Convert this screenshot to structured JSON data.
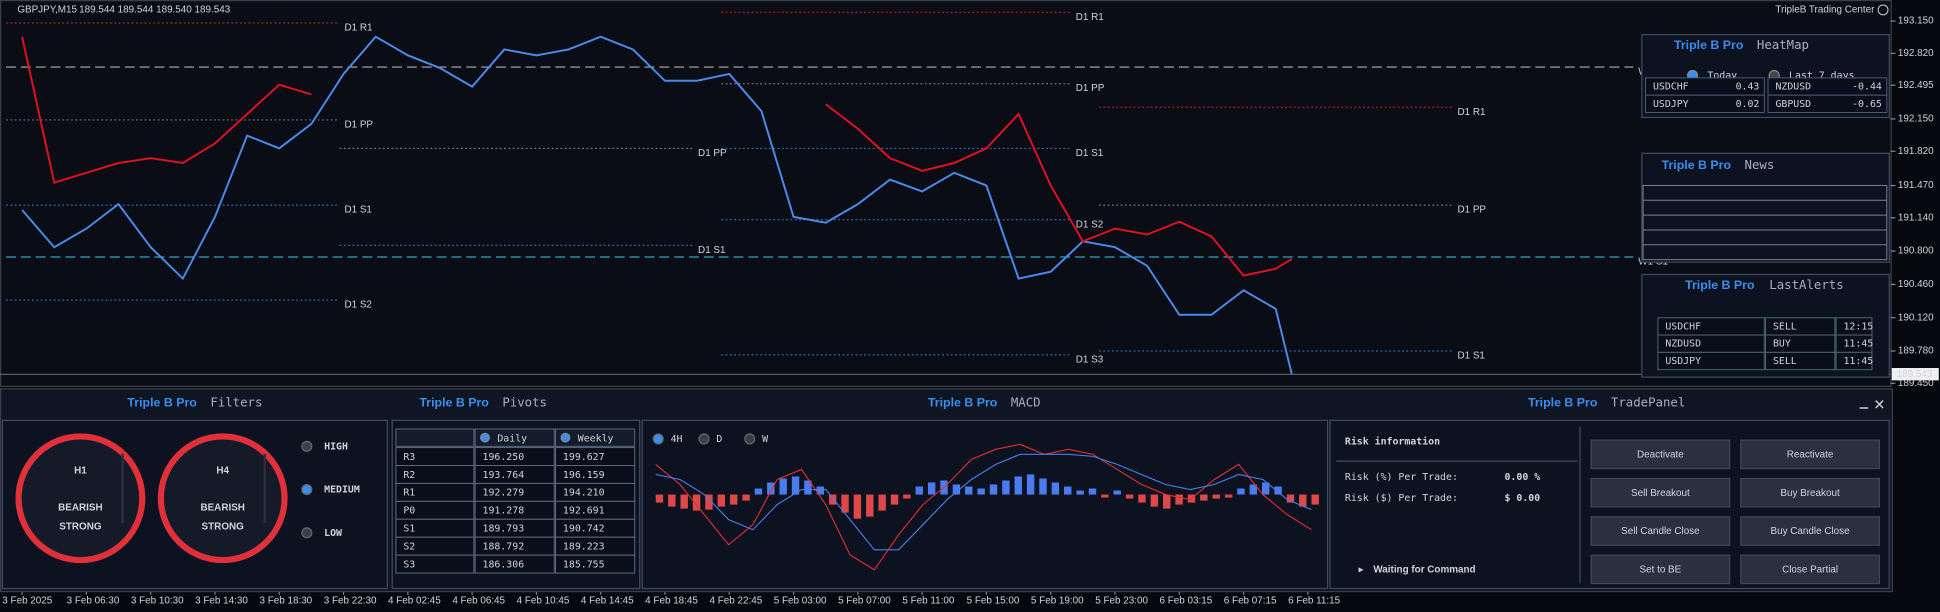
{
  "header": {
    "symbol": "GBPJPY,M15",
    "quote": "189.544 189.544 189.540 189.543",
    "brand": "TripleB Trading Center"
  },
  "chart_data": {
    "type": "line",
    "x": [
      0,
      8,
      16,
      24,
      32,
      40,
      48,
      56,
      64,
      72,
      80,
      88,
      96,
      104,
      112,
      120,
      128,
      136,
      144,
      152,
      160,
      168,
      176,
      184,
      192,
      200,
      208,
      216,
      224,
      232,
      240,
      248,
      256,
      264,
      272,
      280,
      288,
      296,
      304,
      312,
      316
    ],
    "series": [
      {
        "color": "#4a8ae8",
        "values": [
          191.22,
          190.84,
          191.03,
          191.28,
          190.84,
          190.52,
          191.15,
          191.98,
          191.85,
          192.1,
          192.61,
          192.99,
          192.8,
          192.67,
          192.48,
          192.86,
          192.8,
          192.86,
          192.99,
          192.86,
          192.54,
          192.54,
          192.61,
          192.23,
          191.15,
          191.09,
          191.28,
          191.53,
          191.41,
          191.6,
          191.47,
          190.52,
          190.59,
          190.9,
          190.84,
          190.65,
          190.15,
          190.15,
          190.4,
          190.21,
          189.543
        ]
      },
      {
        "color": "#e01020",
        "values": [
          192.99,
          191.5,
          191.6,
          191.7,
          191.75,
          191.7,
          191.9,
          192.2,
          192.5,
          192.4,
          null,
          null,
          null,
          null,
          null,
          null,
          null,
          null,
          null,
          null,
          null,
          null,
          null,
          null,
          null,
          192.3,
          192.05,
          191.75,
          191.62,
          191.7,
          191.85,
          192.2,
          191.47,
          190.9,
          191.03,
          190.97,
          191.1,
          190.95,
          190.55,
          190.62,
          190.72
        ]
      }
    ],
    "xlim": [
      -5.5,
      465
    ],
    "xticks": [
      {
        "value": 0,
        "label": "3 Feb 2025"
      },
      {
        "value": 16,
        "label": "3 Feb 06:30"
      },
      {
        "value": 32,
        "label": "3 Feb 10:30"
      },
      {
        "value": 48,
        "label": "3 Feb 14:30"
      },
      {
        "value": 64,
        "label": "3 Feb 18:30"
      },
      {
        "value": 80,
        "label": "3 Feb 22:30"
      },
      {
        "value": 96,
        "label": "4 Feb 02:45"
      },
      {
        "value": 112,
        "label": "4 Feb 06:45"
      },
      {
        "value": 128,
        "label": "4 Feb 10:45"
      },
      {
        "value": 144,
        "label": "4 Feb 14:45"
      },
      {
        "value": 160,
        "label": "4 Feb 18:45"
      },
      {
        "value": 176,
        "label": "4 Feb 22:45"
      },
      {
        "value": 192,
        "label": "5 Feb 03:00"
      },
      {
        "value": 208,
        "label": "5 Feb 07:00"
      },
      {
        "value": 224,
        "label": "5 Feb 11:00"
      },
      {
        "value": 240,
        "label": "5 Feb 15:00"
      },
      {
        "value": 256,
        "label": "5 Feb 19:00"
      },
      {
        "value": 272,
        "label": "5 Feb 23:00"
      },
      {
        "value": 288,
        "label": "6 Feb 03:15"
      },
      {
        "value": 304,
        "label": "6 Feb 07:15"
      },
      {
        "value": 320,
        "label": "6 Feb 11:15"
      }
    ],
    "ylim": [
      189.425,
      193.365
    ],
    "yticks": [
      {
        "value": 193.15,
        "label": "193.150"
      },
      {
        "value": 192.82,
        "label": "192.820"
      },
      {
        "value": 192.495,
        "label": "192.495"
      },
      {
        "value": 192.15,
        "label": "192.150"
      },
      {
        "value": 191.82,
        "label": "191.820"
      },
      {
        "value": 191.47,
        "label": "191.470"
      },
      {
        "value": 191.14,
        "label": "191.140"
      },
      {
        "value": 190.8,
        "label": "190.800"
      },
      {
        "value": 190.46,
        "label": "190.460"
      },
      {
        "value": 190.12,
        "label": "190.120"
      },
      {
        "value": 189.78,
        "label": "189.780"
      },
      {
        "value": 189.45,
        "label": "189.450"
      }
    ],
    "current_price": {
      "value": 189.543,
      "label": "189.543"
    },
    "levels": [
      {
        "label": "D1 R1",
        "value": 193.13,
        "from": -4,
        "to": 79,
        "color": "#e02020",
        "line_style": "dotted"
      },
      {
        "label": "D1 PP",
        "value": 192.14,
        "from": -4,
        "to": 79,
        "color": "#8a8a8a",
        "line_style": "dotted"
      },
      {
        "label": "D1 S1",
        "value": 191.27,
        "from": -4,
        "to": 79,
        "color": "#3a7bd5",
        "line_style": "dotted"
      },
      {
        "label": "D1 S2",
        "value": 190.3,
        "from": -4,
        "to": 79,
        "color": "#3a7bd5",
        "line_style": "dotted"
      },
      {
        "label": "D1 PP",
        "value": 191.85,
        "from": 79,
        "to": 167,
        "color": "#8a8a8a",
        "line_style": "dotted"
      },
      {
        "label": "D1 S1",
        "value": 190.86,
        "from": 79,
        "to": 167,
        "color": "#3a7bd5",
        "line_style": "dotted"
      },
      {
        "label": "D1 R1",
        "value": 193.24,
        "from": 174,
        "to": 261,
        "color": "#e02020",
        "line_style": "dotted"
      },
      {
        "label": "D1 PP",
        "value": 192.51,
        "from": 174,
        "to": 261,
        "color": "#8a8a8a",
        "line_style": "dotted"
      },
      {
        "label": "D1 S1",
        "value": 191.85,
        "from": 174,
        "to": 261,
        "color": "#3a7bd5",
        "line_style": "dotted"
      },
      {
        "label": "D1 S2",
        "value": 191.12,
        "from": 174,
        "to": 261,
        "color": "#3a7bd5",
        "line_style": "dotted"
      },
      {
        "label": "D1 S3",
        "value": 189.74,
        "from": 174,
        "to": 261,
        "color": "#3a7bd5",
        "line_style": "dotted"
      },
      {
        "label": "D1 R1",
        "value": 192.27,
        "from": 268,
        "to": 356,
        "color": "#e02020",
        "line_style": "dotted"
      },
      {
        "label": "D1 PP",
        "value": 191.27,
        "from": 268,
        "to": 356,
        "color": "#8a8a8a",
        "line_style": "dotted"
      },
      {
        "label": "D1 S1",
        "value": 189.78,
        "from": 268,
        "to": 356,
        "color": "#3a7bd5",
        "line_style": "dotted"
      },
      {
        "label": "W1 PP",
        "value": 192.68,
        "from": -4,
        "to": 401,
        "color": "#b0b0b0",
        "line_style": "dashed"
      },
      {
        "label": "W1 S1",
        "value": 190.74,
        "from": -4,
        "to": 401,
        "color": "#2aa7c9",
        "line_style": "dashed"
      }
    ]
  },
  "heatmap": {
    "brand": "Triple B Pro",
    "title": "HeatMap",
    "options": [
      "Today",
      "Last 7 days"
    ],
    "rows": [
      [
        "USDCHF",
        "0.43",
        "NZDUSD",
        "-0.44"
      ],
      [
        "USDJPY",
        "0.02",
        "GBPUSD",
        "-0.65"
      ]
    ]
  },
  "news": {
    "brand": "Triple B Pro",
    "title": "News"
  },
  "alerts": {
    "brand": "Triple B Pro",
    "title": "LastAlerts",
    "rows": [
      {
        "pair": "USDCHF",
        "action": "SELL",
        "time": "12:15",
        "color": "#e03a3a"
      },
      {
        "pair": "NZDUSD",
        "action": "BUY",
        "time": "11:45",
        "color": "#4a8ae8"
      },
      {
        "pair": "USDJPY",
        "action": "SELL",
        "time": "11:45",
        "color": "#e03a3a"
      }
    ]
  },
  "filters": {
    "brand": "Triple B Pro",
    "title": "Filters",
    "gauges": [
      {
        "timeframe": "H1",
        "status": [
          "BEARISH",
          "STRONG"
        ]
      },
      {
        "timeframe": "H4",
        "status": [
          "BEARISH",
          "STRONG"
        ]
      }
    ],
    "levels": [
      "HIGH",
      "MEDIUM",
      "LOW"
    ],
    "selected": 1
  },
  "pivots": {
    "brand": "Triple B Pro",
    "title": "Pivots",
    "columns": [
      "Daily",
      "Weekly"
    ],
    "rows": [
      {
        "cells": [
          "R3",
          "196.250",
          "199.627"
        ],
        "color": "#e03a3a"
      },
      {
        "cells": [
          "R2",
          "193.764",
          "196.159"
        ],
        "color": "#e03a3a"
      },
      {
        "cells": [
          "R1",
          "192.279",
          "194.210"
        ],
        "color": "#e03a3a"
      },
      {
        "cells": [
          "P0",
          "191.278",
          "192.691"
        ],
        "color": "#c8c8c8"
      },
      {
        "cells": [
          "S1",
          "189.793",
          "190.742"
        ],
        "color": "#4a8ae8"
      },
      {
        "cells": [
          "S2",
          "188.792",
          "189.223"
        ],
        "color": "#4a8ae8"
      },
      {
        "cells": [
          "S3",
          "186.306",
          "185.755"
        ],
        "color": "#4a8ae8"
      }
    ]
  },
  "macd": {
    "brand": "Triple B Pro",
    "title": "MACD",
    "timeframes": [
      "4H",
      "D",
      "W"
    ],
    "selected": 0,
    "ylim": [
      -80,
      80
    ],
    "histogram": [
      -8,
      -12,
      -14,
      -16,
      -15,
      -12,
      -10,
      -6,
      6,
      12,
      16,
      18,
      14,
      8,
      -10,
      -18,
      -24,
      -22,
      -16,
      -10,
      -4,
      8,
      12,
      14,
      10,
      8,
      6,
      10,
      14,
      18,
      20,
      16,
      12,
      8,
      4,
      6,
      -3,
      4,
      -4,
      -8,
      -12,
      -14,
      -10,
      -8,
      -6,
      -4,
      -3,
      6,
      10,
      12,
      8,
      -8,
      -12,
      -10
    ],
    "macd_line": [
      30,
      10,
      -20,
      -50,
      -30,
      15,
      25,
      -10,
      -60,
      -75,
      -40,
      -10,
      10,
      35,
      45,
      50,
      40,
      45,
      40,
      25,
      10,
      0,
      -5,
      15,
      30,
      0,
      -20,
      -35
    ],
    "signal_line": [
      20,
      15,
      0,
      -25,
      -35,
      -10,
      5,
      5,
      -25,
      -55,
      -55,
      -30,
      -5,
      15,
      30,
      40,
      40,
      40,
      38,
      30,
      20,
      10,
      5,
      10,
      20,
      15,
      -5,
      -15
    ]
  },
  "trade": {
    "brand": "Triple B Pro",
    "title": "TradePanel",
    "risk_title": "Risk information",
    "risk_rows": [
      [
        "Risk (%) Per Trade:",
        "0.00 %"
      ],
      [
        "Risk ($) Per Trade:",
        "$ 0.00"
      ]
    ],
    "status": "Waiting for Command",
    "buttons": [
      "Deactivate",
      "Reactivate",
      "Sell Breakout",
      "Buy Breakout",
      "Sell Candle Close",
      "Buy Candle Close",
      "Set to BE",
      "Close Partial"
    ]
  }
}
